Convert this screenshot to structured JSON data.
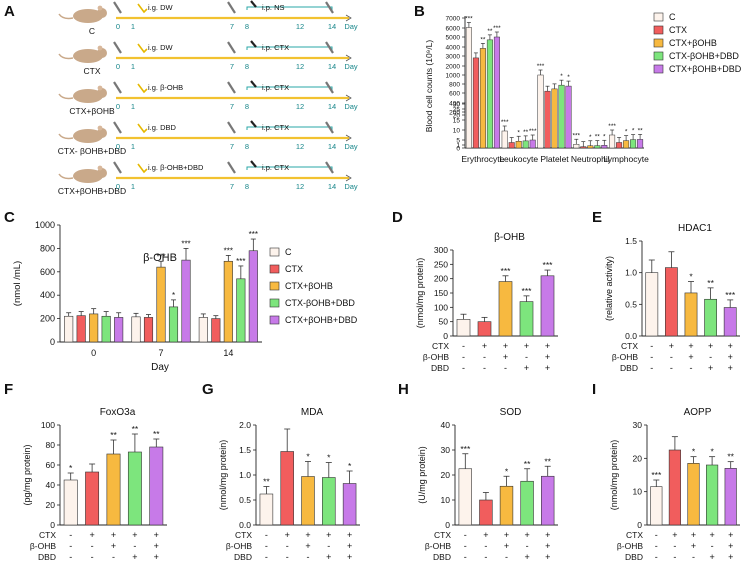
{
  "colors": {
    "C": "#fdf3ec",
    "CTX": "#f15d5d",
    "CTX+βOHB": "#f7b940",
    "CTX-βOHB+DBD": "#7de57d",
    "CTX+βOHB+DBD": "#c77ae8",
    "mouse": "#c9a98a",
    "timeline": "#f2c230",
    "bracket": "#2aa7a7"
  },
  "panel_letters": [
    "A",
    "B",
    "C",
    "D",
    "E",
    "F",
    "G",
    "H",
    "I"
  ],
  "schema": {
    "groups": [
      {
        "label": "C",
        "injection_1": "i.g. DW",
        "injection_2": "i.p. NS"
      },
      {
        "label": "CTX",
        "injection_1": "i.g. DW",
        "injection_2": "i.p. CTX"
      },
      {
        "label": "CTX+βOHB",
        "injection_1": "i.g.  β-OHB",
        "injection_2": "i.p. CTX"
      },
      {
        "label": "CTX- βOHB+DBD",
        "injection_1": "i.g. DBD",
        "injection_2": "i.p. CTX"
      },
      {
        "label": "CTX+βOHB+DBD",
        "injection_1": "i.g.  β-OHB+DBD",
        "injection_2": "i.p. CTX"
      }
    ],
    "days": [
      "0",
      "1",
      "7",
      "8",
      "12",
      "14"
    ],
    "day_label": "Day"
  },
  "legend_groups": [
    "C",
    "CTX",
    "CTX+βOHB",
    "CTX-βOHB+DBD",
    "CTX+βOHB+DBD"
  ],
  "treatment_table": {
    "rows": [
      "CTX",
      "β-OHB",
      "DBD"
    ],
    "signs": [
      [
        "-",
        "+",
        "+",
        "+",
        "+"
      ],
      [
        "-",
        "-",
        "+",
        "-",
        "+"
      ],
      [
        "-",
        "-",
        "-",
        "+",
        "+"
      ]
    ]
  },
  "chart_data": [
    {
      "panel": "B",
      "type": "bar",
      "ylabel": "Blood cell counts (10⁹/L)",
      "y_tick_labels": [
        "0",
        "1",
        "5",
        "10",
        "15",
        "20",
        "25",
        "30",
        "200",
        "400",
        "600",
        "800",
        "1000",
        "2000",
        "3000",
        "4000",
        "5000",
        "6000",
        "7000"
      ],
      "categories": [
        "Erythrocyte",
        "Leukocyte",
        "Platelet",
        "Neutrophil",
        "Lymphocyte"
      ],
      "series": [
        {
          "name": "C",
          "values": [
            6000,
            9.5,
            1000,
            1.6,
            7.5
          ],
          "sig": [
            "***",
            "***",
            "***",
            "***",
            "***"
          ]
        },
        {
          "name": "CTX",
          "values": [
            2800,
            3.0,
            650,
            0.45,
            3.0
          ],
          "sig": [
            "",
            "",
            "",
            "",
            ""
          ]
        },
        {
          "name": "CTX+βOHB",
          "values": [
            3800,
            4.0,
            700,
            0.75,
            4.5
          ],
          "sig": [
            "**",
            "*",
            "",
            "*",
            "*"
          ]
        },
        {
          "name": "CTX-βOHB+DBD",
          "values": [
            4700,
            4.3,
            780,
            0.8,
            5.2
          ],
          "sig": [
            "**",
            "**",
            "*",
            "**",
            "*"
          ]
        },
        {
          "name": "CTX+βOHB+DBD",
          "values": [
            5000,
            5.0,
            760,
            0.9,
            5.3
          ],
          "sig": [
            "***",
            "***",
            "*",
            "*",
            "**"
          ]
        }
      ]
    },
    {
      "panel": "C",
      "type": "bar",
      "title": "β-OHB",
      "ylabel": "(nmol /mL)",
      "xlabel": "Day",
      "categories": [
        "0",
        "7",
        "14"
      ],
      "ylim": [
        0,
        1000
      ],
      "y_ticks": [
        "0",
        "200",
        "400",
        "600",
        "800",
        "1000"
      ],
      "series": [
        {
          "name": "C",
          "values": [
            220,
            215,
            210
          ],
          "errors": [
            30,
            30,
            30
          ],
          "sig": [
            "",
            "",
            ""
          ]
        },
        {
          "name": "CTX",
          "values": [
            225,
            210,
            200
          ],
          "errors": [
            35,
            25,
            25
          ],
          "sig": [
            "",
            "",
            ""
          ]
        },
        {
          "name": "CTX+βOHB",
          "values": [
            240,
            640,
            690
          ],
          "errors": [
            45,
            50,
            50
          ],
          "sig": [
            "",
            "***",
            "***"
          ]
        },
        {
          "name": "CTX-βOHB+DBD",
          "values": [
            220,
            300,
            540
          ],
          "errors": [
            40,
            60,
            110
          ],
          "sig": [
            "",
            "*",
            "***"
          ]
        },
        {
          "name": "CTX+βOHB+DBD",
          "values": [
            210,
            700,
            780
          ],
          "errors": [
            40,
            100,
            100
          ],
          "sig": [
            "",
            "***",
            "***"
          ]
        }
      ]
    },
    {
      "panel": "D",
      "type": "bar",
      "title": "β-OHB",
      "ylabel": "(nmol/mg protein)",
      "ylim": [
        0,
        300
      ],
      "y_ticks": [
        "0",
        "50",
        "100",
        "150",
        "200",
        "250",
        "300"
      ],
      "values": [
        58,
        50,
        190,
        120,
        210
      ],
      "errors": [
        18,
        15,
        20,
        20,
        20
      ],
      "sig": [
        "",
        "",
        "***",
        "***",
        "***"
      ]
    },
    {
      "panel": "E",
      "type": "bar",
      "title": "HDAC1",
      "ylabel": "(relative activity)",
      "ylim": [
        0,
        1.5
      ],
      "y_ticks": [
        "0.0",
        "0.5",
        "1.0",
        "1.5"
      ],
      "values": [
        1.0,
        1.08,
        0.68,
        0.58,
        0.45
      ],
      "errors": [
        0.2,
        0.25,
        0.18,
        0.18,
        0.12
      ],
      "sig": [
        "",
        "",
        "*",
        "**",
        "***"
      ]
    },
    {
      "panel": "F",
      "type": "bar",
      "title": "FoxO3a",
      "ylabel": "(pg/mg protein)",
      "ylim": [
        0,
        100
      ],
      "y_ticks": [
        "0",
        "20",
        "40",
        "60",
        "80",
        "100"
      ],
      "values": [
        45,
        53,
        71,
        73,
        78
      ],
      "errors": [
        7,
        8,
        14,
        18,
        8
      ],
      "sig": [
        "*",
        "",
        "**",
        "**",
        "**"
      ]
    },
    {
      "panel": "G",
      "type": "bar",
      "title": "MDA",
      "ylabel": "(nmol/mg protein)",
      "ylim": [
        0,
        2.0
      ],
      "y_ticks": [
        "0.0",
        "0.5",
        "1.0",
        "1.5",
        "2.0"
      ],
      "values": [
        0.62,
        1.47,
        0.97,
        0.95,
        0.83
      ],
      "errors": [
        0.15,
        0.45,
        0.3,
        0.3,
        0.25
      ],
      "sig": [
        "**",
        "",
        "*",
        "*",
        "*"
      ]
    },
    {
      "panel": "H",
      "type": "bar",
      "title": "SOD",
      "ylabel": "(U/mg protein)",
      "ylim": [
        0,
        40
      ],
      "y_ticks": [
        "0",
        "10",
        "20",
        "30",
        "40"
      ],
      "values": [
        22.5,
        10,
        15.5,
        17.5,
        19.5
      ],
      "errors": [
        6,
        3,
        4,
        5,
        4
      ],
      "sig": [
        "***",
        "",
        "*",
        "**",
        "**"
      ]
    },
    {
      "panel": "I",
      "type": "bar",
      "title": "AOPP",
      "ylabel": "(nmol/mg protein)",
      "ylim": [
        0,
        30
      ],
      "y_ticks": [
        "0",
        "10",
        "20",
        "30"
      ],
      "values": [
        11.5,
        22.5,
        18.5,
        18,
        17
      ],
      "errors": [
        2,
        4,
        2,
        2.5,
        2
      ],
      "sig": [
        "***",
        "",
        "*",
        "*",
        "**"
      ]
    }
  ]
}
